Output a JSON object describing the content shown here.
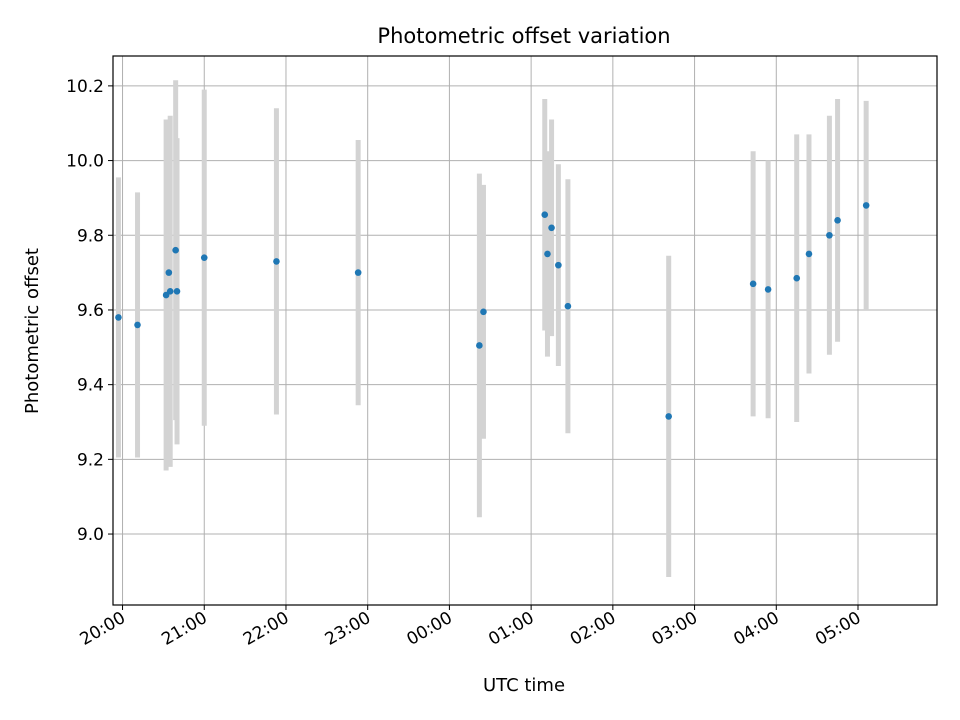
{
  "chart_data": {
    "type": "scatter",
    "title": "Photometric offset variation",
    "xlabel": "UTC time",
    "ylabel": "Photometric offset",
    "x_ticks": [
      "20:00",
      "21:00",
      "22:00",
      "23:00",
      "00:00",
      "01:00",
      "02:00",
      "03:00",
      "04:00",
      "05:00"
    ],
    "y_ticks": [
      "9.0",
      "9.2",
      "9.4",
      "9.6",
      "9.8",
      "10.0",
      "10.2"
    ],
    "ylim": [
      8.81,
      10.28
    ],
    "xlim": [
      "19:53",
      "05:58"
    ],
    "grid": true,
    "colors": {
      "point": "#1f77b4",
      "errorbar": "#d3d3d3",
      "grid": "#b0b0b0"
    },
    "points": [
      {
        "x": "19:57",
        "y": 9.58,
        "yerr": 0.375
      },
      {
        "x": "20:11",
        "y": 9.56,
        "yerr": 0.355
      },
      {
        "x": "20:32",
        "y": 9.64,
        "yerr": 0.47
      },
      {
        "x": "20:34",
        "y": 9.7,
        "yerr": 0.41
      },
      {
        "x": "20:35",
        "y": 9.65,
        "yerr": 0.47
      },
      {
        "x": "20:39",
        "y": 9.76,
        "yerr": 0.455
      },
      {
        "x": "20:40",
        "y": 9.65,
        "yerr": 0.41
      },
      {
        "x": "21:00",
        "y": 9.74,
        "yerr": 0.45
      },
      {
        "x": "21:53",
        "y": 9.73,
        "yerr": 0.41
      },
      {
        "x": "22:53",
        "y": 9.7,
        "yerr": 0.355
      },
      {
        "x": "00:22",
        "y": 9.505,
        "yerr": 0.46
      },
      {
        "x": "00:25",
        "y": 9.595,
        "yerr": 0.34
      },
      {
        "x": "01:10",
        "y": 9.855,
        "yerr": 0.31
      },
      {
        "x": "01:12",
        "y": 9.75,
        "yerr": 0.275
      },
      {
        "x": "01:15",
        "y": 9.82,
        "yerr": 0.29
      },
      {
        "x": "01:20",
        "y": 9.72,
        "yerr": 0.27
      },
      {
        "x": "01:27",
        "y": 9.61,
        "yerr": 0.34
      },
      {
        "x": "02:41",
        "y": 9.315,
        "yerr": 0.43
      },
      {
        "x": "03:43",
        "y": 9.67,
        "yerr": 0.355
      },
      {
        "x": "03:54",
        "y": 9.655,
        "yerr": 0.345
      },
      {
        "x": "04:15",
        "y": 9.685,
        "yerr": 0.385
      },
      {
        "x": "04:24",
        "y": 9.75,
        "yerr": 0.32
      },
      {
        "x": "04:39",
        "y": 9.8,
        "yerr": 0.32
      },
      {
        "x": "04:45",
        "y": 9.84,
        "yerr": 0.325
      },
      {
        "x": "05:06",
        "y": 9.88,
        "yerr": 0.28
      }
    ]
  }
}
